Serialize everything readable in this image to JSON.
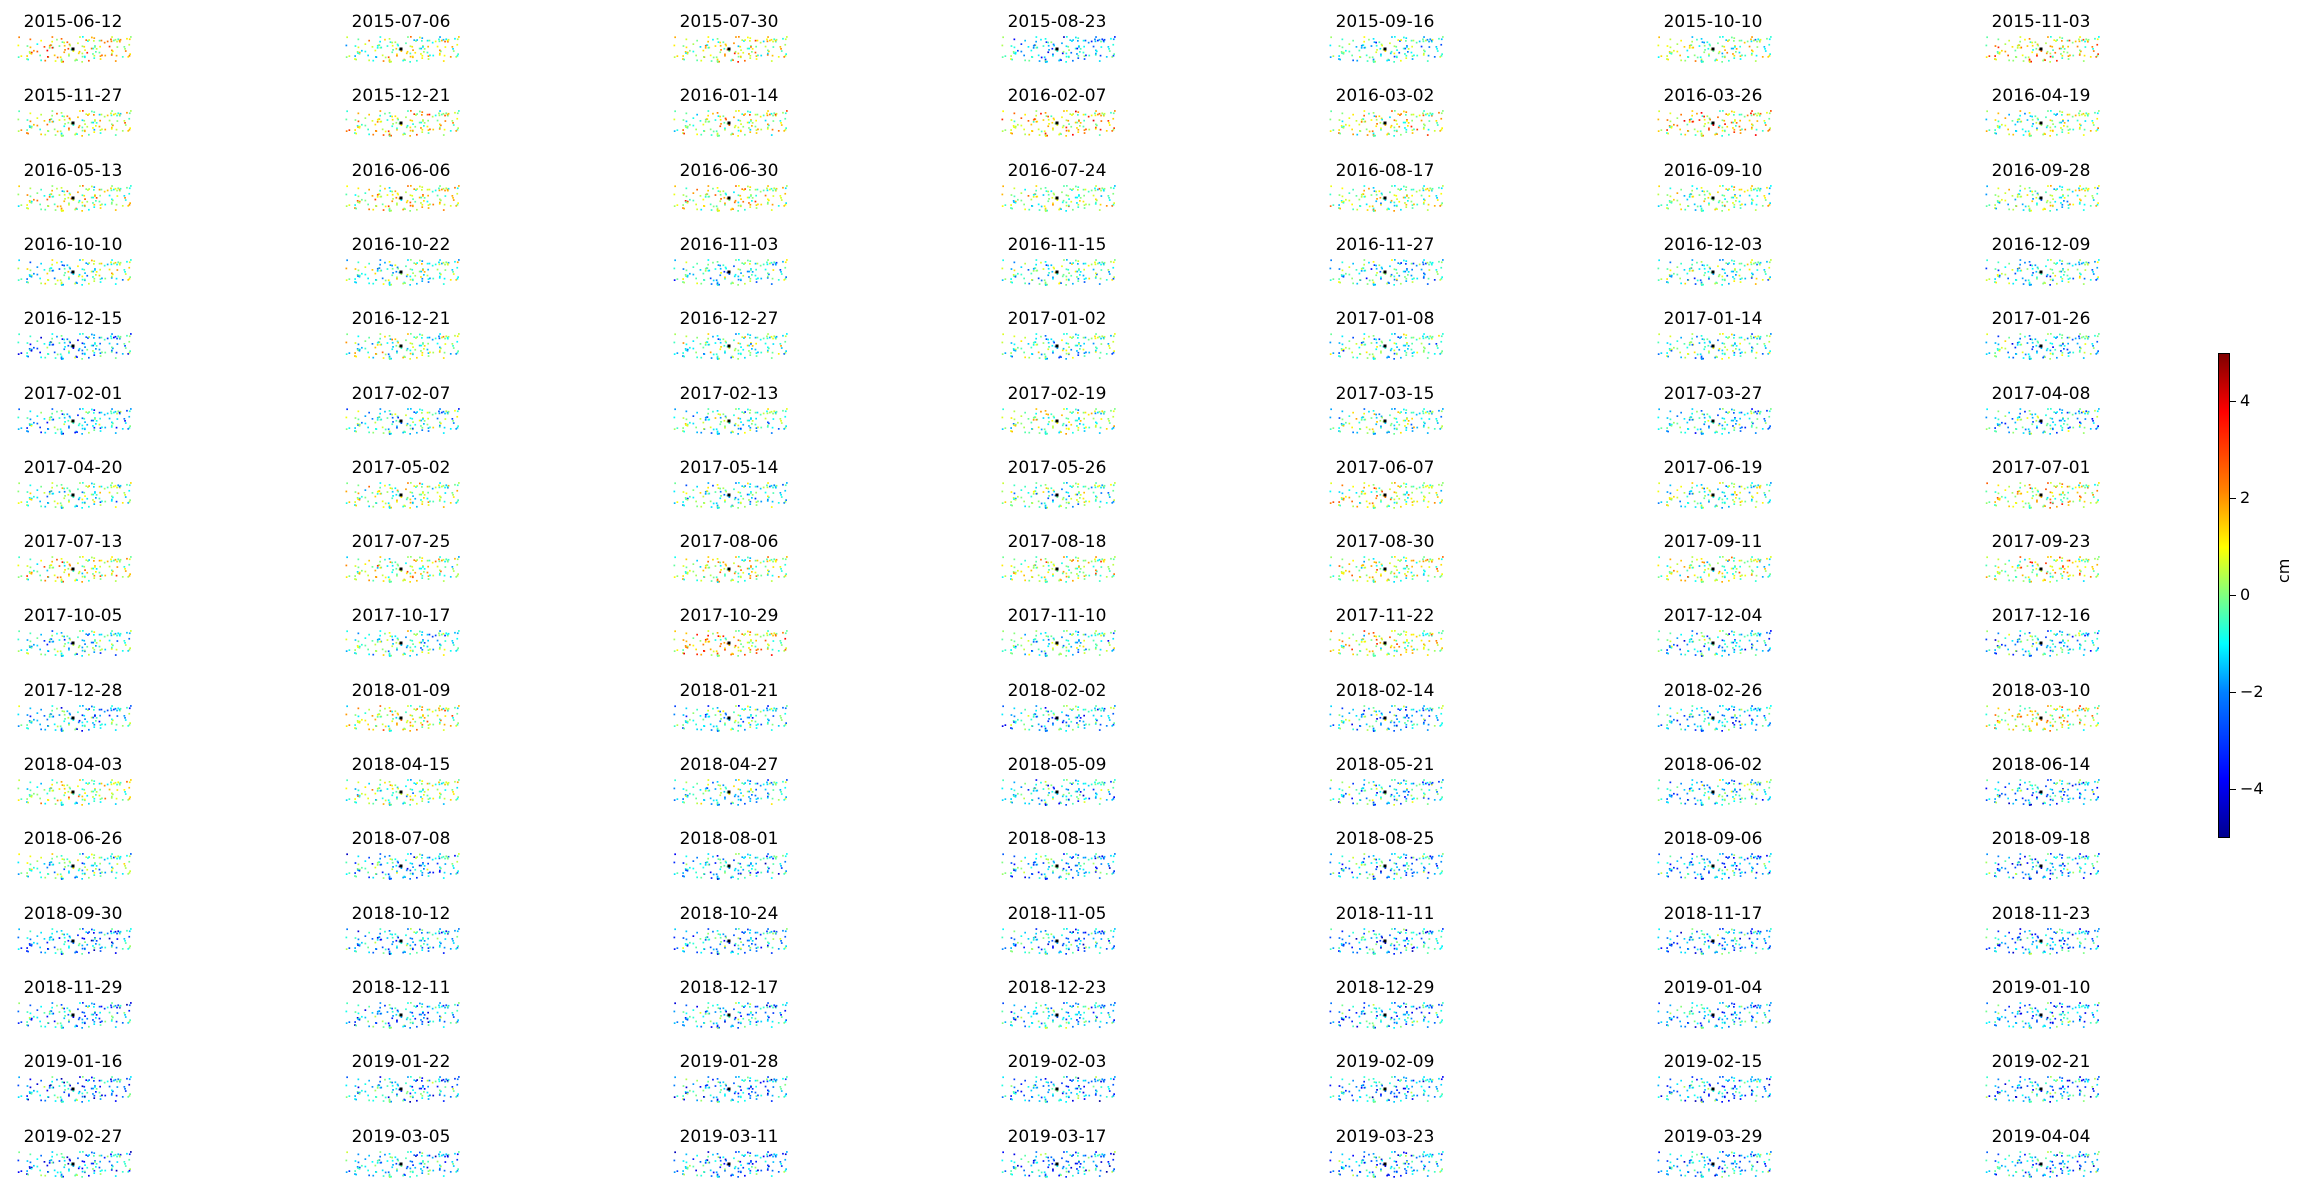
{
  "chart_data": {
    "type": "scatter",
    "description_of_panels": "small-multiples of displacement point maps, one per acquisition date",
    "colormap": "jet",
    "vmin": -5,
    "vmax": 5,
    "panel_dates": [
      "2015-06-12",
      "2015-07-06",
      "2015-07-30",
      "2015-08-23",
      "2015-09-16",
      "2015-10-10",
      "2015-11-03",
      "2015-11-27",
      "2015-12-21",
      "2016-01-14",
      "2016-02-07",
      "2016-03-02",
      "2016-03-26",
      "2016-04-19",
      "2016-05-13",
      "2016-06-06",
      "2016-06-30",
      "2016-07-24",
      "2016-08-17",
      "2016-09-10",
      "2016-09-28",
      "2016-10-10",
      "2016-10-22",
      "2016-11-03",
      "2016-11-15",
      "2016-11-27",
      "2016-12-03",
      "2016-12-09",
      "2016-12-15",
      "2016-12-21",
      "2016-12-27",
      "2017-01-02",
      "2017-01-08",
      "2017-01-14",
      "2017-01-26",
      "2017-02-01",
      "2017-02-07",
      "2017-02-13",
      "2017-02-19",
      "2017-03-15",
      "2017-03-27",
      "2017-04-08",
      "2017-04-20",
      "2017-05-02",
      "2017-05-14",
      "2017-05-26",
      "2017-06-07",
      "2017-06-19",
      "2017-07-01",
      "2017-07-13",
      "2017-07-25",
      "2017-08-06",
      "2017-08-18",
      "2017-08-30",
      "2017-09-11",
      "2017-09-23",
      "2017-10-05",
      "2017-10-17",
      "2017-10-29",
      "2017-11-10",
      "2017-11-22",
      "2017-12-04",
      "2017-12-16",
      "2017-12-28",
      "2018-01-09",
      "2018-01-21",
      "2018-02-02",
      "2018-02-14",
      "2018-02-26",
      "2018-03-10",
      "2018-04-03",
      "2018-04-15",
      "2018-04-27",
      "2018-05-09",
      "2018-05-21",
      "2018-06-02",
      "2018-06-14",
      "2018-06-26",
      "2018-07-08",
      "2018-08-01",
      "2018-08-13",
      "2018-08-25",
      "2018-09-06",
      "2018-09-18",
      "2018-09-30",
      "2018-10-12",
      "2018-10-24",
      "2018-11-05",
      "2018-11-11",
      "2018-11-17",
      "2018-11-23",
      "2018-11-29",
      "2018-12-11",
      "2018-12-17",
      "2018-12-23",
      "2018-12-29",
      "2019-01-04",
      "2019-01-10",
      "2019-01-16",
      "2019-01-22",
      "2019-01-28",
      "2019-02-03",
      "2019-02-09",
      "2019-02-15",
      "2019-02-21",
      "2019-02-27",
      "2019-03-05",
      "2019-03-11",
      "2019-03-17",
      "2019-03-23",
      "2019-03-29",
      "2019-04-04"
    ],
    "panel_tendency": [
      1.2,
      0.3,
      0.9,
      -1.6,
      -0.8,
      0.1,
      1.3,
      0.4,
      0.9,
      0.6,
      1.5,
      0.8,
      1.2,
      0.0,
      0.6,
      1.0,
      0.9,
      0.3,
      0.2,
      0.0,
      -0.2,
      -0.5,
      -0.4,
      -0.8,
      -0.6,
      -1.2,
      -0.8,
      -1.0,
      -1.6,
      -0.1,
      -0.4,
      -0.6,
      -0.9,
      -0.7,
      -1.2,
      -1.5,
      -1.1,
      -0.8,
      -0.2,
      -0.6,
      -1.2,
      -1.3,
      -0.4,
      0.1,
      -0.8,
      -0.6,
      0.5,
      -0.3,
      0.9,
      0.8,
      0.6,
      0.5,
      0.7,
      0.4,
      0.2,
      0.9,
      -0.9,
      -0.7,
      1.4,
      -0.9,
      0.5,
      -1.4,
      -1.5,
      -1.4,
      0.8,
      -1.3,
      -1.8,
      -1.3,
      -1.6,
      0.9,
      0.4,
      0.0,
      -1.0,
      -1.5,
      -1.3,
      -1.2,
      -1.8,
      -1.0,
      -1.6,
      -1.8,
      -1.6,
      -1.6,
      -1.6,
      -1.7,
      -2.0,
      -1.8,
      -1.7,
      -2.0,
      -1.8,
      -1.9,
      -1.8,
      -1.9,
      -1.8,
      -1.9,
      -1.6,
      -1.9,
      -1.8,
      -1.8,
      -2.0,
      -1.9,
      -2.0,
      -2.0,
      -2.0,
      -1.9,
      -1.9,
      -2.0,
      -1.9,
      -2.0,
      -2.0,
      -1.9,
      -1.8,
      -1.8
    ],
    "grid": false,
    "axes_visible": false,
    "colorbar": {
      "label": "cm",
      "ticks": [
        4,
        2,
        0,
        -2,
        -4
      ],
      "tick_labels": [
        "4",
        "2",
        "0",
        "−2",
        "−4"
      ]
    }
  }
}
